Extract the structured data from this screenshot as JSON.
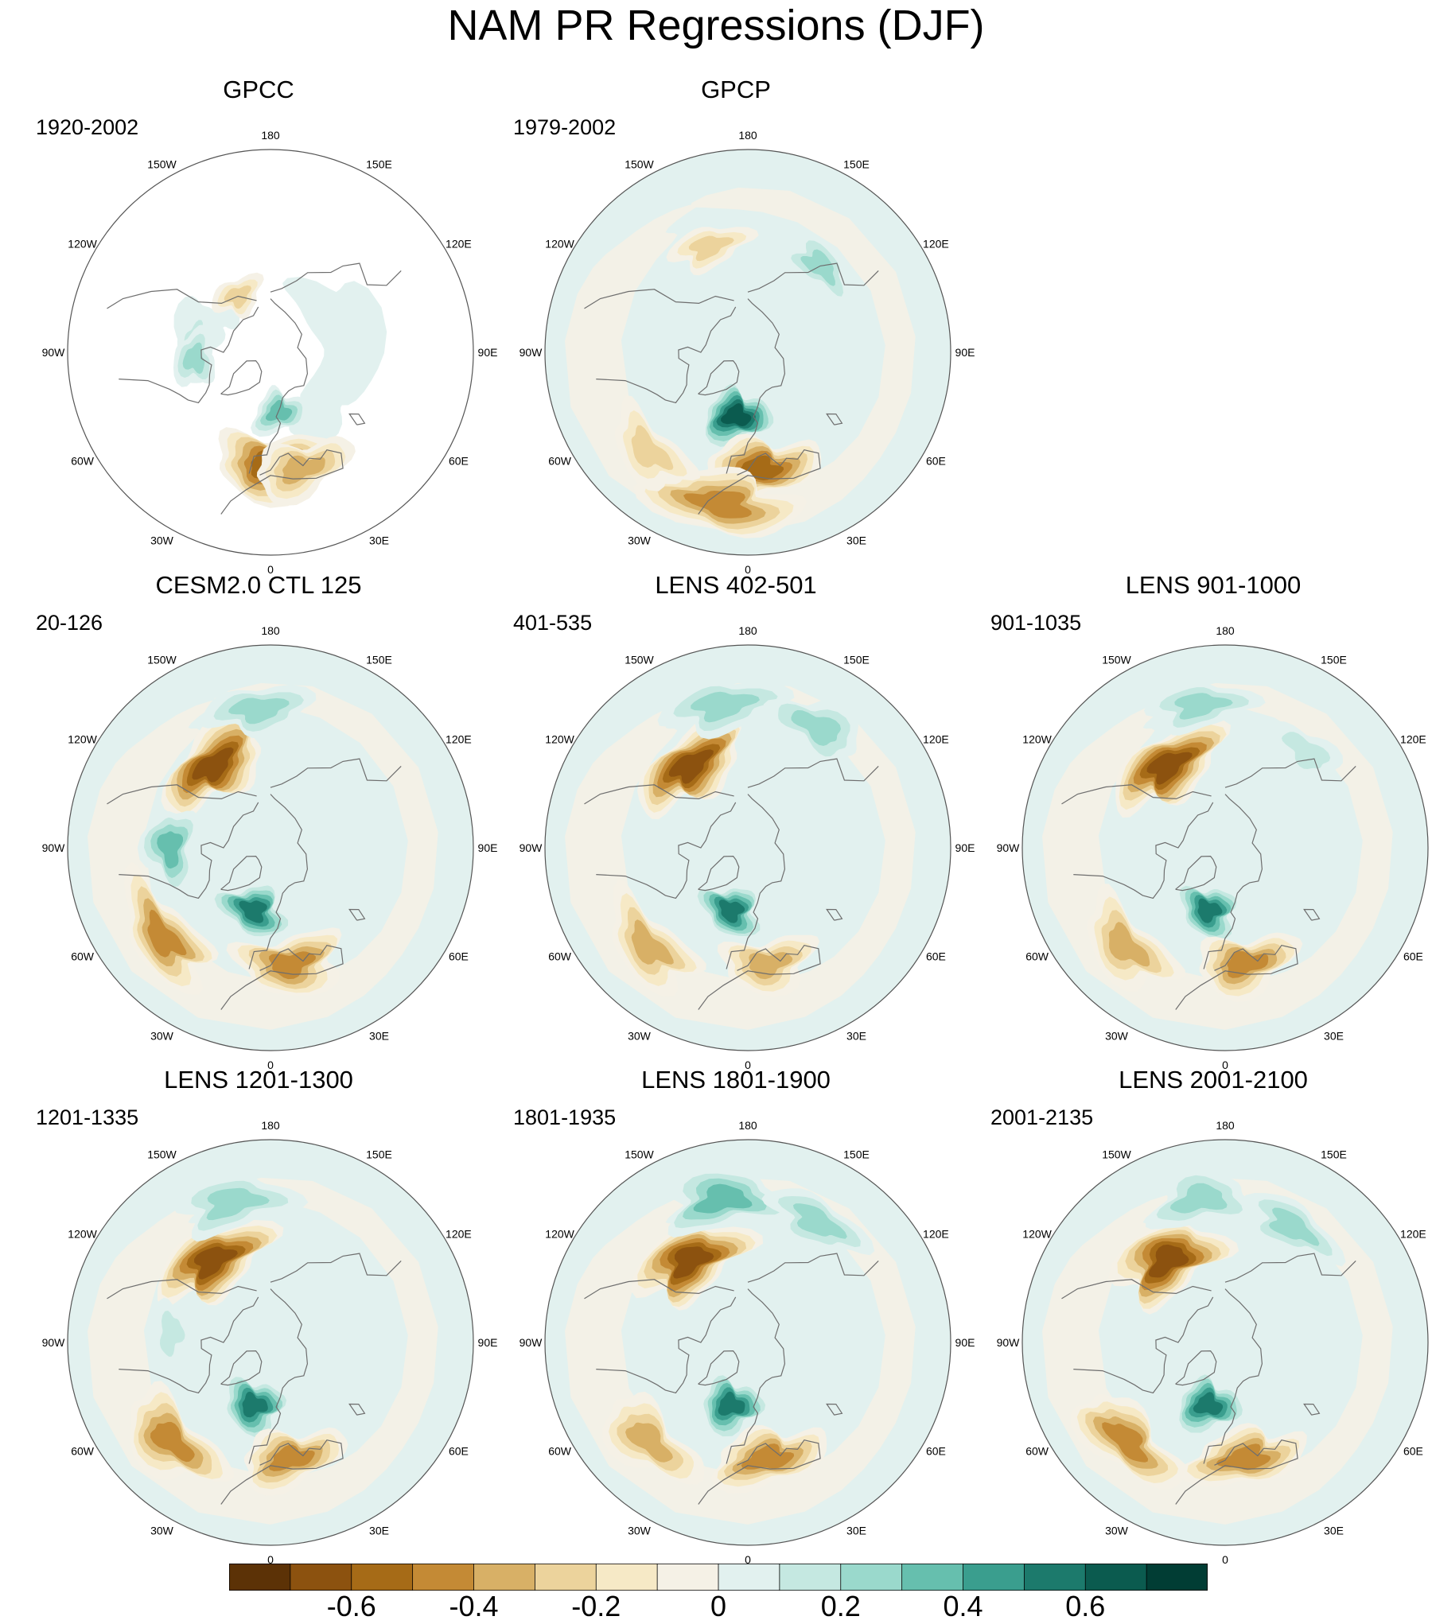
{
  "title": "NAM PR Regressions (DJF)",
  "colors": {
    "land_outline": "#6e6e6e",
    "map_border": "#555555",
    "missing": "#ffffff",
    "palette": [
      "#5c3206",
      "#8c520f",
      "#a66b17",
      "#c48a35",
      "#d8b066",
      "#ecd39c",
      "#f6e9c6",
      "#f5f1e6",
      "#e2f1ef",
      "#c5e8e1",
      "#9ad9cc",
      "#66bfae",
      "#3a9e8e",
      "#1c7a6c",
      "#0b5b4f",
      "#013d34"
    ]
  },
  "chart_data": {
    "type": "heatmap",
    "projection": "north-polar-stereographic",
    "longitude_labels": [
      "180",
      "150E",
      "120E",
      "90E",
      "60E",
      "30E",
      "0",
      "30W",
      "60W",
      "90W",
      "120W",
      "150W"
    ],
    "colorbar": {
      "levels": [
        -0.7,
        -0.6,
        -0.5,
        -0.4,
        -0.3,
        -0.2,
        -0.1,
        0,
        0.1,
        0.2,
        0.3,
        0.4,
        0.5,
        0.6,
        0.7
      ],
      "tick_values": [
        -0.6,
        -0.4,
        -0.2,
        0,
        0.2,
        0.4,
        0.6
      ],
      "tick_labels": [
        "-0.6",
        "-0.4",
        "-0.2",
        "0",
        "0.2",
        "0.4",
        "0.6"
      ],
      "units": ""
    },
    "panels": [
      {
        "id": "gpcc",
        "title": "GPCC",
        "period": "1920-2002",
        "land_only": true,
        "features": [
          {
            "name": "iberia-mediterranean",
            "lon": 0,
            "lat": 40,
            "value": -0.6
          },
          {
            "name": "north-africa-coast",
            "lon": 15,
            "lat": 37,
            "value": -0.4
          },
          {
            "name": "norway",
            "lon": 8,
            "lat": 62,
            "value": 0.4
          },
          {
            "name": "alaska-coast",
            "lon": -150,
            "lat": 60,
            "value": -0.3
          },
          {
            "name": "canada-west",
            "lon": -100,
            "lat": 55,
            "value": 0.2
          },
          {
            "name": "hudson-region",
            "lon": -85,
            "lat": 55,
            "value": 0.3
          }
        ]
      },
      {
        "id": "gpcp",
        "title": "GPCP",
        "period": "1979-2002",
        "land_only": false,
        "features": [
          {
            "name": "north-atlantic-europe-plus",
            "lon": -10,
            "lat": 60,
            "value": 0.65
          },
          {
            "name": "mediterranean-minus",
            "lon": 5,
            "lat": 38,
            "value": -0.55
          },
          {
            "name": "west-africa-minus",
            "lon": -10,
            "lat": 25,
            "value": -0.5
          },
          {
            "name": "pacific-minus",
            "lon": -160,
            "lat": 40,
            "value": -0.25
          },
          {
            "name": "east-asia-plus",
            "lon": 140,
            "lat": 40,
            "value": 0.25
          },
          {
            "name": "atlantic-subtropics",
            "lon": -45,
            "lat": 30,
            "value": -0.3
          }
        ]
      },
      {
        "id": "cesm2",
        "title": "CESM2.0 CTL 125",
        "period": "20-126",
        "land_only": false,
        "features": [
          {
            "name": "north-pacific-minus",
            "lon": -145,
            "lat": 45,
            "value": -0.7
          },
          {
            "name": "pacific-plus-arc",
            "lon": -175,
            "lat": 30,
            "value": 0.3
          },
          {
            "name": "north-atlantic-plus",
            "lon": -15,
            "lat": 60,
            "value": 0.6
          },
          {
            "name": "atlantic-subtropics-minus",
            "lon": -50,
            "lat": 30,
            "value": -0.45
          },
          {
            "name": "mediterranean-minus",
            "lon": 10,
            "lat": 38,
            "value": -0.5
          },
          {
            "name": "hudson-plus",
            "lon": -90,
            "lat": 45,
            "value": 0.4
          }
        ]
      },
      {
        "id": "lens402",
        "title": "LENS 402-501",
        "period": "401-535",
        "land_only": false,
        "features": [
          {
            "name": "north-pacific-minus",
            "lon": -145,
            "lat": 45,
            "value": -0.7
          },
          {
            "name": "pacific-plus-arc",
            "lon": -170,
            "lat": 28,
            "value": 0.35
          },
          {
            "name": "north-atlantic-plus",
            "lon": -15,
            "lat": 60,
            "value": 0.55
          },
          {
            "name": "atlantic-subtropics-minus",
            "lon": -45,
            "lat": 30,
            "value": -0.4
          },
          {
            "name": "mediterranean-minus",
            "lon": 10,
            "lat": 38,
            "value": -0.4
          },
          {
            "name": "east-pacific-plus",
            "lon": 150,
            "lat": 30,
            "value": 0.3
          }
        ]
      },
      {
        "id": "lens901",
        "title": "LENS 901-1000",
        "period": "901-1035",
        "land_only": false,
        "features": [
          {
            "name": "north-pacific-minus",
            "lon": -145,
            "lat": 45,
            "value": -0.7
          },
          {
            "name": "pacific-plus-arc",
            "lon": -170,
            "lat": 28,
            "value": 0.25
          },
          {
            "name": "north-atlantic-plus",
            "lon": -15,
            "lat": 60,
            "value": 0.55
          },
          {
            "name": "atlantic-subtropics-minus",
            "lon": -45,
            "lat": 30,
            "value": -0.4
          },
          {
            "name": "mediterranean-minus",
            "lon": 10,
            "lat": 38,
            "value": -0.45
          },
          {
            "name": "east-asia-plus",
            "lon": 140,
            "lat": 35,
            "value": 0.2
          }
        ]
      },
      {
        "id": "lens1201",
        "title": "LENS 1201-1300",
        "period": "1201-1335",
        "land_only": false,
        "features": [
          {
            "name": "north-pacific-minus",
            "lon": -145,
            "lat": 45,
            "value": -0.7
          },
          {
            "name": "pacific-plus-arc",
            "lon": -165,
            "lat": 28,
            "value": 0.35
          },
          {
            "name": "north-atlantic-plus",
            "lon": -15,
            "lat": 60,
            "value": 0.6
          },
          {
            "name": "atlantic-subtropics-minus",
            "lon": -45,
            "lat": 30,
            "value": -0.45
          },
          {
            "name": "mediterranean-minus",
            "lon": 10,
            "lat": 38,
            "value": -0.45
          },
          {
            "name": "hudson-plus",
            "lon": -95,
            "lat": 45,
            "value": 0.2
          }
        ]
      },
      {
        "id": "lens1801",
        "title": "LENS 1801-1900",
        "period": "1801-1935",
        "land_only": false,
        "features": [
          {
            "name": "north-pacific-minus",
            "lon": -145,
            "lat": 45,
            "value": -0.7
          },
          {
            "name": "pacific-plus-arc",
            "lon": -170,
            "lat": 28,
            "value": 0.4
          },
          {
            "name": "north-atlantic-plus",
            "lon": -15,
            "lat": 60,
            "value": 0.6
          },
          {
            "name": "atlantic-subtropics-minus",
            "lon": -45,
            "lat": 30,
            "value": -0.4
          },
          {
            "name": "mediterranean-minus",
            "lon": 10,
            "lat": 38,
            "value": -0.5
          },
          {
            "name": "east-pacific-plus",
            "lon": 150,
            "lat": 30,
            "value": 0.3
          }
        ]
      },
      {
        "id": "lens2001",
        "title": "LENS 2001-2100",
        "period": "2001-2135",
        "land_only": false,
        "features": [
          {
            "name": "north-pacific-minus",
            "lon": -145,
            "lat": 45,
            "value": -0.7
          },
          {
            "name": "pacific-plus-arc",
            "lon": -170,
            "lat": 28,
            "value": 0.3
          },
          {
            "name": "north-atlantic-plus",
            "lon": -15,
            "lat": 60,
            "value": 0.6
          },
          {
            "name": "atlantic-subtropics-minus",
            "lon": -45,
            "lat": 30,
            "value": -0.45
          },
          {
            "name": "mediterranean-minus",
            "lon": 10,
            "lat": 38,
            "value": -0.5
          },
          {
            "name": "east-asia-plus",
            "lon": 150,
            "lat": 32,
            "value": 0.3
          }
        ]
      }
    ]
  }
}
